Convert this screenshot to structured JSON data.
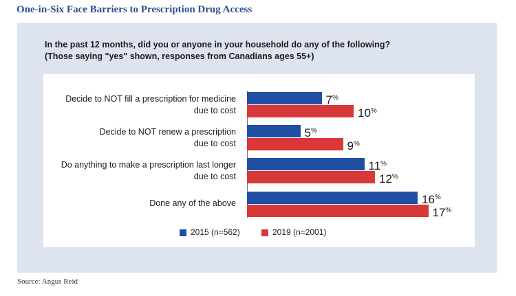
{
  "title": "One-in-Six Face Barriers to Prescription Drug Access",
  "question_line1": "In the past 12 months, did you or anyone in your household do any of the following?",
  "question_line2": "(Those saying \"yes\" shown, responses from Canadians ages 55+)",
  "source": "Source: Angus Reid",
  "colors": {
    "series_2015": "#1f4ea3",
    "series_2019": "#d9383a"
  },
  "chart_data": {
    "type": "bar",
    "orientation": "horizontal",
    "categories": [
      [
        "Decide to NOT fill a prescription for medicine",
        "due to cost"
      ],
      [
        "Decide to NOT renew a prescription",
        "due to cost"
      ],
      [
        "Do anything to make a prescription last longer",
        "due to cost"
      ],
      [
        "Done any of the above"
      ]
    ],
    "series": [
      {
        "name": "2015 (n=562)",
        "values": [
          7,
          5,
          11,
          16
        ]
      },
      {
        "name": "2019 (n=2001)",
        "values": [
          10,
          9,
          12,
          17
        ]
      }
    ],
    "unit": "%",
    "legend_position": "bottom",
    "grid": false
  }
}
